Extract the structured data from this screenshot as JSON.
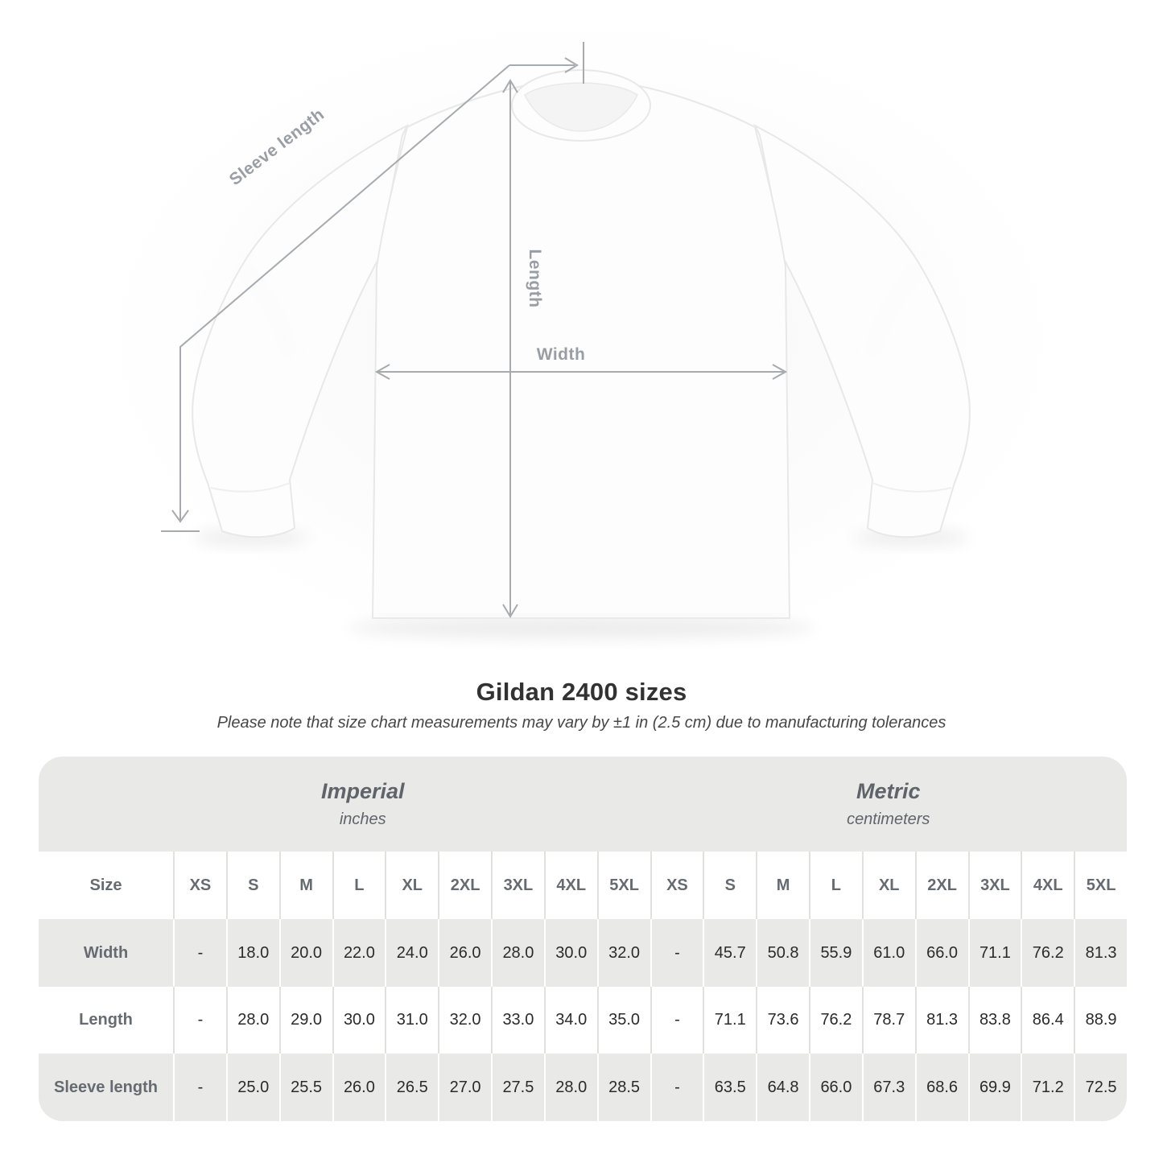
{
  "title": "Gildan 2400 sizes",
  "subtitle": "Please note that size chart measurements may vary by ±1 in (2.5 cm) due to manufacturing tolerances",
  "diagram": {
    "sleeve_label": "Sleeve length",
    "length_label": "Length",
    "width_label": "Width"
  },
  "chart_data": {
    "type": "table",
    "corner_label": "Size",
    "groups": [
      {
        "label": "Imperial",
        "sublabel": "inches"
      },
      {
        "label": "Metric",
        "sublabel": "centimeters"
      }
    ],
    "sizes": [
      "XS",
      "S",
      "M",
      "L",
      "XL",
      "2XL",
      "3XL",
      "4XL",
      "5XL"
    ],
    "rows": [
      {
        "label": "Width",
        "imperial": [
          "-",
          "18.0",
          "20.0",
          "22.0",
          "24.0",
          "26.0",
          "28.0",
          "30.0",
          "32.0"
        ],
        "metric": [
          "-",
          "45.7",
          "50.8",
          "55.9",
          "61.0",
          "66.0",
          "71.1",
          "76.2",
          "81.3"
        ]
      },
      {
        "label": "Length",
        "imperial": [
          "-",
          "28.0",
          "29.0",
          "30.0",
          "31.0",
          "32.0",
          "33.0",
          "34.0",
          "35.0"
        ],
        "metric": [
          "-",
          "71.1",
          "73.6",
          "76.2",
          "78.7",
          "81.3",
          "83.8",
          "86.4",
          "88.9"
        ]
      },
      {
        "label": "Sleeve length",
        "imperial": [
          "-",
          "25.0",
          "25.5",
          "26.0",
          "26.5",
          "27.0",
          "27.5",
          "28.0",
          "28.5"
        ],
        "metric": [
          "-",
          "63.5",
          "64.8",
          "66.0",
          "67.3",
          "68.6",
          "69.9",
          "71.2",
          "72.5"
        ]
      }
    ]
  },
  "colors": {
    "table_band": "#e9e9e8",
    "header_text": "#666b71",
    "value_text": "#2b2b2b",
    "annotation": "#a7aaae"
  }
}
